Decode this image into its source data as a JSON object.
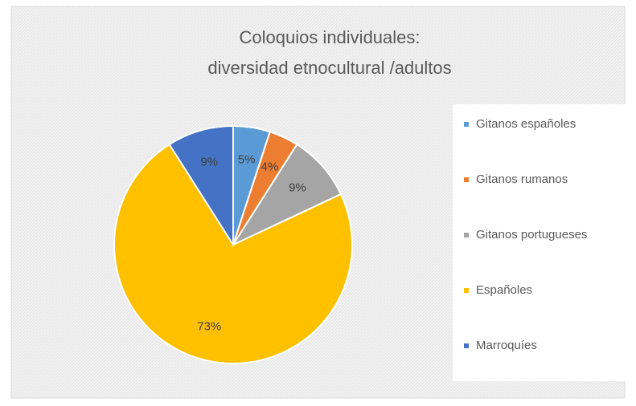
{
  "chart_data": {
    "type": "pie",
    "title": [
      "Coloquios individuales:",
      "diversidad etnocultural /adultos"
    ],
    "categories": [
      "Gitanos españoles",
      "Gitanos rumanos",
      "Gitanos portugueses",
      "Españoles",
      "Marroquíes"
    ],
    "values": [
      5,
      4,
      9,
      73,
      9
    ],
    "value_labels": [
      "5%",
      "4%",
      "9%",
      "73%",
      "9%"
    ],
    "colors": [
      "#5b9bd5",
      "#ed7d31",
      "#a5a5a5",
      "#ffc000",
      "#4472c4"
    ],
    "legend": "right"
  }
}
